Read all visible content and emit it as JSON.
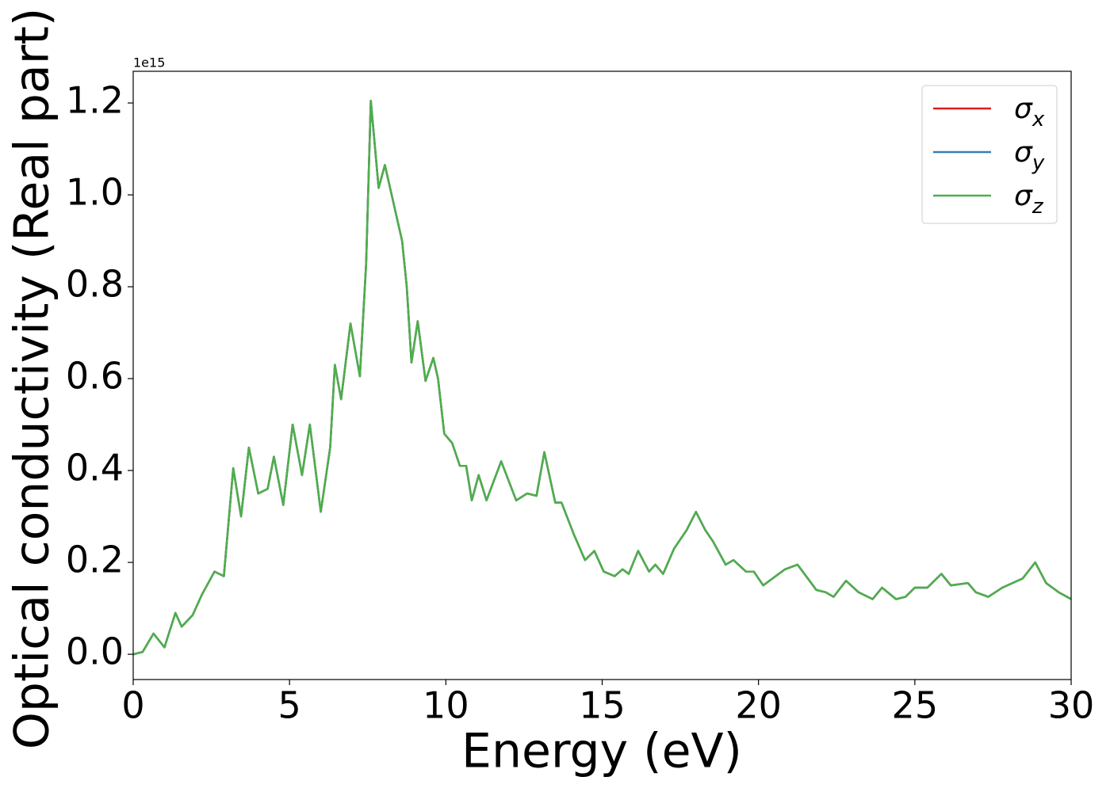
{
  "chart_data": {
    "type": "line",
    "xlabel": "Energy (eV)",
    "ylabel": "Optical conductivity (Real part)",
    "y_offset_label": "1e15",
    "xlim": [
      0,
      30
    ],
    "ylim": [
      -0.055,
      1.269
    ],
    "xticks": [
      0,
      5,
      10,
      15,
      20,
      25,
      30
    ],
    "yticks": [
      {
        "value": 0,
        "label": "0.0"
      },
      0.2,
      0.4,
      0.6,
      0.8,
      {
        "value": 1,
        "label": "1.0"
      },
      1.2
    ],
    "legend": "upper right",
    "x": [
      0,
      0.3,
      0.65,
      1.0,
      1.35,
      1.55,
      1.9,
      2.2,
      2.6,
      2.9,
      3.2,
      3.45,
      3.7,
      4.0,
      4.3,
      4.5,
      4.8,
      5.1,
      5.4,
      5.65,
      6.0,
      6.3,
      6.45,
      6.65,
      6.95,
      7.25,
      7.45,
      7.6,
      7.85,
      8.05,
      8.4,
      8.6,
      8.75,
      8.9,
      9.1,
      9.35,
      9.6,
      9.75,
      9.95,
      10.2,
      10.45,
      10.65,
      10.83,
      11.05,
      11.3,
      11.77,
      12.25,
      12.6,
      12.9,
      13.15,
      13.5,
      13.7,
      14.1,
      14.45,
      14.75,
      15.05,
      15.4,
      15.65,
      15.85,
      16.15,
      16.5,
      16.7,
      16.95,
      17.3,
      17.7,
      18.0,
      18.3,
      18.55,
      18.95,
      19.2,
      19.6,
      19.85,
      20.15,
      20.45,
      20.85,
      21.25,
      21.85,
      22.15,
      22.4,
      22.8,
      23.2,
      23.65,
      23.95,
      24.4,
      24.7,
      25.0,
      25.4,
      25.85,
      26.15,
      26.7,
      26.95,
      27.35,
      27.8,
      28.45,
      28.85,
      29.2,
      29.6,
      30
    ],
    "series": [
      {
        "name": "σx",
        "color": "#e41a1c",
        "values": [
          0,
          0.005,
          0.045,
          0.015,
          0.09,
          0.06,
          0.085,
          0.13,
          0.18,
          0.17,
          0.405,
          0.3,
          0.45,
          0.35,
          0.36,
          0.43,
          0.325,
          0.5,
          0.39,
          0.5,
          0.31,
          0.45,
          0.63,
          0.555,
          0.72,
          0.605,
          0.85,
          1.205,
          1.015,
          1.065,
          0.96,
          0.9,
          0.8,
          0.635,
          0.725,
          0.595,
          0.645,
          0.6,
          0.48,
          0.46,
          0.41,
          0.41,
          0.335,
          0.39,
          0.335,
          0.42,
          0.335,
          0.35,
          0.345,
          0.44,
          0.33,
          0.33,
          0.26,
          0.205,
          0.225,
          0.18,
          0.17,
          0.185,
          0.175,
          0.225,
          0.18,
          0.195,
          0.175,
          0.23,
          0.27,
          0.31,
          0.27,
          0.245,
          0.195,
          0.205,
          0.18,
          0.18,
          0.15,
          0.165,
          0.185,
          0.195,
          0.14,
          0.135,
          0.125,
          0.16,
          0.135,
          0.12,
          0.145,
          0.12,
          0.125,
          0.145,
          0.145,
          0.175,
          0.15,
          0.155,
          0.135,
          0.125,
          0.145,
          0.165,
          0.2,
          0.155,
          0.135,
          0.12
        ]
      },
      {
        "name": "σy",
        "color": "#377eb8",
        "values": [
          0,
          0.005,
          0.045,
          0.015,
          0.09,
          0.06,
          0.085,
          0.13,
          0.18,
          0.17,
          0.405,
          0.3,
          0.45,
          0.35,
          0.36,
          0.43,
          0.325,
          0.5,
          0.39,
          0.5,
          0.31,
          0.45,
          0.63,
          0.555,
          0.72,
          0.605,
          0.85,
          1.205,
          1.015,
          1.065,
          0.96,
          0.9,
          0.8,
          0.635,
          0.725,
          0.595,
          0.645,
          0.6,
          0.48,
          0.46,
          0.41,
          0.41,
          0.335,
          0.39,
          0.335,
          0.42,
          0.335,
          0.35,
          0.345,
          0.44,
          0.33,
          0.33,
          0.26,
          0.205,
          0.225,
          0.18,
          0.17,
          0.185,
          0.175,
          0.225,
          0.18,
          0.195,
          0.175,
          0.23,
          0.27,
          0.31,
          0.27,
          0.245,
          0.195,
          0.205,
          0.18,
          0.18,
          0.15,
          0.165,
          0.185,
          0.195,
          0.14,
          0.135,
          0.125,
          0.16,
          0.135,
          0.12,
          0.145,
          0.12,
          0.125,
          0.145,
          0.145,
          0.175,
          0.15,
          0.155,
          0.135,
          0.125,
          0.145,
          0.165,
          0.2,
          0.155,
          0.135,
          0.12
        ]
      },
      {
        "name": "σz",
        "color": "#4daf4a",
        "values": [
          0,
          0.005,
          0.045,
          0.015,
          0.09,
          0.06,
          0.085,
          0.13,
          0.18,
          0.17,
          0.405,
          0.3,
          0.45,
          0.35,
          0.36,
          0.43,
          0.325,
          0.5,
          0.39,
          0.5,
          0.31,
          0.45,
          0.63,
          0.555,
          0.72,
          0.605,
          0.85,
          1.205,
          1.015,
          1.065,
          0.96,
          0.9,
          0.8,
          0.635,
          0.725,
          0.595,
          0.645,
          0.6,
          0.48,
          0.46,
          0.41,
          0.41,
          0.335,
          0.39,
          0.335,
          0.42,
          0.335,
          0.35,
          0.345,
          0.44,
          0.33,
          0.33,
          0.26,
          0.205,
          0.225,
          0.18,
          0.17,
          0.185,
          0.175,
          0.225,
          0.18,
          0.195,
          0.175,
          0.23,
          0.27,
          0.31,
          0.27,
          0.245,
          0.195,
          0.205,
          0.18,
          0.18,
          0.15,
          0.165,
          0.185,
          0.195,
          0.14,
          0.135,
          0.125,
          0.16,
          0.135,
          0.12,
          0.145,
          0.12,
          0.125,
          0.145,
          0.145,
          0.175,
          0.15,
          0.155,
          0.135,
          0.125,
          0.145,
          0.165,
          0.2,
          0.155,
          0.135,
          0.12
        ]
      }
    ]
  }
}
